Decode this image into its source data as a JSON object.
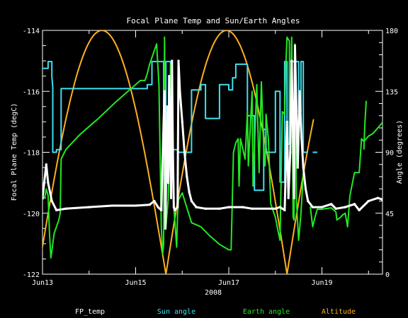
{
  "chart_data": {
    "type": "line",
    "title": "Focal Plane Temp and Sun/Earth Angles",
    "xlabel": "2008",
    "ylabel_left": "Focal Plane Temp (degC)",
    "ylabel_right": "Angle (degrees)",
    "x_unit": "days (Jun 13 = 13)",
    "xlim": [
      13.0,
      20.3
    ],
    "ylim_left": [
      -122,
      -114
    ],
    "ylim_right": [
      0,
      180
    ],
    "left_ticks": [
      -122,
      -120,
      -118,
      -116,
      -114
    ],
    "right_ticks": [
      0,
      45,
      90,
      135,
      180
    ],
    "x_ticks": [
      {
        "x": 13,
        "label": "Jun13"
      },
      {
        "x": 15,
        "label": "Jun15"
      },
      {
        "x": 17,
        "label": "Jun17"
      },
      {
        "x": 19,
        "label": "Jun19"
      }
    ],
    "legend": [
      {
        "name": "FP_temp",
        "color": "#ffffff"
      },
      {
        "name": "Sun angle",
        "color": "#40e0f0"
      },
      {
        "name": "Earth angle",
        "color": "#22e822"
      },
      {
        "name": "Altitude",
        "color": "#ffb020"
      }
    ],
    "series": [
      {
        "name": "FP_temp",
        "axis": "left",
        "color": "#ffffff",
        "style": "points",
        "points": [
          [
            13.0,
            -119.5
          ],
          [
            13.08,
            -118.4
          ],
          [
            13.12,
            -119.0
          ],
          [
            13.2,
            -119.6
          ],
          [
            13.3,
            -119.9
          ],
          [
            13.5,
            -119.85
          ],
          [
            14.0,
            -119.8
          ],
          [
            14.5,
            -119.75
          ],
          [
            15.0,
            -119.75
          ],
          [
            15.3,
            -119.72
          ],
          [
            15.4,
            -119.6
          ],
          [
            15.48,
            -119.8
          ],
          [
            15.55,
            -119.9
          ],
          [
            15.6,
            -117.0
          ],
          [
            15.62,
            -116.0
          ],
          [
            15.64,
            -120.5
          ],
          [
            15.66,
            -118.0
          ],
          [
            15.68,
            -116.5
          ],
          [
            15.7,
            -119.0
          ],
          [
            15.72,
            -115.5
          ],
          [
            15.74,
            -117.5
          ],
          [
            15.76,
            -119.5
          ],
          [
            15.78,
            -115.0
          ],
          [
            15.8,
            -118.0
          ],
          [
            15.82,
            -119.8
          ],
          [
            15.84,
            -119.9
          ],
          [
            15.9,
            -119.8
          ],
          [
            15.92,
            -115.0
          ],
          [
            15.95,
            -116.0
          ],
          [
            16.0,
            -117.0
          ],
          [
            16.05,
            -118.0
          ],
          [
            16.1,
            -118.8
          ],
          [
            16.15,
            -119.3
          ],
          [
            16.2,
            -119.6
          ],
          [
            16.3,
            -119.8
          ],
          [
            16.5,
            -119.85
          ],
          [
            16.8,
            -119.85
          ],
          [
            17.0,
            -119.8
          ],
          [
            17.3,
            -119.8
          ],
          [
            17.5,
            -119.85
          ],
          [
            18.0,
            -119.85
          ],
          [
            18.1,
            -119.8
          ],
          [
            18.2,
            -119.9
          ],
          [
            18.25,
            -117.0
          ],
          [
            18.28,
            -119.5
          ],
          [
            18.32,
            -118.0
          ],
          [
            18.35,
            -115.0
          ],
          [
            18.38,
            -117.5
          ],
          [
            18.4,
            -119.5
          ],
          [
            18.42,
            -114.5
          ],
          [
            18.45,
            -116.5
          ],
          [
            18.48,
            -118.5
          ],
          [
            18.52,
            -116.0
          ],
          [
            18.56,
            -117.5
          ],
          [
            18.6,
            -118.5
          ],
          [
            18.65,
            -119.2
          ],
          [
            18.7,
            -119.6
          ],
          [
            18.8,
            -119.8
          ],
          [
            19.0,
            -119.8
          ],
          [
            19.2,
            -119.7
          ],
          [
            19.3,
            -119.85
          ],
          [
            19.5,
            -119.8
          ],
          [
            19.7,
            -119.7
          ],
          [
            19.8,
            -119.9
          ],
          [
            20.0,
            -119.6
          ],
          [
            20.2,
            -119.5
          ],
          [
            20.3,
            -119.55
          ]
        ]
      },
      {
        "name": "Sun angle",
        "axis": "right",
        "color": "#40e0f0",
        "style": "line",
        "segments": [
          [
            [
              13.0,
              152
            ],
            [
              13.12,
              152
            ],
            [
              13.12,
              157
            ],
            [
              13.2,
              157
            ],
            [
              13.2,
              146
            ],
            [
              13.22,
              138
            ],
            [
              13.22,
              90
            ],
            [
              13.3,
              90
            ],
            [
              13.3,
              92
            ],
            [
              13.4,
              92
            ],
            [
              13.4,
              137
            ],
            [
              14.0,
              137
            ],
            [
              14.5,
              137
            ],
            [
              15.0,
              137
            ],
            [
              15.25,
              137
            ],
            [
              15.25,
              140
            ],
            [
              15.35,
              140
            ],
            [
              15.35,
              157
            ],
            [
              15.6,
              157
            ],
            [
              15.6,
              92
            ],
            [
              15.65,
              92
            ],
            [
              15.65,
              157
            ],
            [
              15.75,
              157
            ],
            [
              15.75,
              92
            ],
            [
              15.9,
              92
            ],
            [
              15.9,
              90
            ],
            [
              16.2,
              90
            ],
            [
              16.2,
              136
            ],
            [
              16.4,
              136
            ],
            [
              16.4,
              140
            ],
            [
              16.5,
              140
            ],
            [
              16.5,
              115
            ],
            [
              16.8,
              115
            ],
            [
              16.8,
              140
            ],
            [
              17.0,
              140
            ],
            [
              17.0,
              136
            ],
            [
              17.08,
              136
            ],
            [
              17.08,
              145
            ],
            [
              17.15,
              145
            ],
            [
              17.15,
              155
            ],
            [
              17.4,
              155
            ],
            [
              17.4,
              117
            ],
            [
              17.55,
              117
            ],
            [
              17.55,
              62
            ],
            [
              17.75,
              62
            ],
            [
              17.75,
              107
            ],
            [
              17.8,
              107
            ],
            [
              17.8,
              90
            ],
            [
              18.0,
              90
            ],
            [
              18.0,
              135
            ],
            [
              18.1,
              135
            ],
            [
              18.1,
              68
            ],
            [
              18.2,
              68
            ],
            [
              18.2,
              157
            ],
            [
              18.25,
              157
            ],
            [
              18.25,
              96
            ],
            [
              18.3,
              96
            ],
            [
              18.3,
              157
            ],
            [
              18.5,
              157
            ],
            [
              18.5,
              120
            ],
            [
              18.55,
              120
            ],
            [
              18.55,
              157
            ],
            [
              18.6,
              157
            ],
            [
              18.6,
              90
            ],
            [
              18.7,
              90
            ]
          ],
          [
            [
              18.8,
              90
            ],
            [
              18.9,
              90
            ]
          ]
        ]
      },
      {
        "name": "Earth angle",
        "axis": "right",
        "color": "#22e822",
        "style": "line",
        "segments": [
          [
            [
              13.0,
              55
            ],
            [
              13.05,
              57
            ],
            [
              13.08,
              63
            ],
            [
              13.12,
              58
            ],
            [
              13.15,
              30
            ],
            [
              13.18,
              12
            ],
            [
              13.2,
              17
            ],
            [
              13.25,
              30
            ],
            [
              13.3,
              35
            ],
            [
              13.35,
              40
            ],
            [
              13.38,
              45
            ],
            [
              13.4,
              85
            ],
            [
              13.5,
              92
            ],
            [
              13.8,
              103
            ],
            [
              14.2,
              115
            ],
            [
              14.6,
              128
            ],
            [
              15.0,
              140
            ],
            [
              15.1,
              143
            ],
            [
              15.2,
              143
            ],
            [
              15.25,
              148
            ],
            [
              15.3,
              155
            ],
            [
              15.4,
              165
            ],
            [
              15.45,
              170
            ],
            [
              15.5,
              140
            ],
            [
              15.55,
              35
            ],
            [
              15.58,
              15
            ],
            [
              15.6,
              22
            ],
            [
              15.62,
              175
            ],
            [
              15.65,
              35
            ],
            [
              15.7,
              55
            ],
            [
              15.75,
              155
            ],
            [
              15.8,
              90
            ],
            [
              15.82,
              50
            ],
            [
              15.85,
              35
            ],
            [
              15.88,
              20
            ],
            [
              15.9,
              45
            ],
            [
              15.92,
              55
            ],
            [
              16.0,
              60
            ],
            [
              16.2,
              38
            ],
            [
              16.4,
              35
            ],
            [
              16.6,
              28
            ],
            [
              16.8,
              22
            ],
            [
              17.0,
              18
            ],
            [
              17.05,
              18
            ],
            [
              17.1,
              90
            ],
            [
              17.15,
              97
            ],
            [
              17.2,
              100
            ],
            [
              17.22,
              65
            ],
            [
              17.25,
              100
            ],
            [
              17.35,
              85
            ],
            [
              17.4,
              120
            ],
            [
              17.42,
              80
            ],
            [
              17.5,
              135
            ],
            [
              17.52,
              65
            ],
            [
              17.6,
              140
            ],
            [
              17.65,
              75
            ],
            [
              17.7,
              142
            ],
            [
              17.75,
              92
            ],
            [
              17.78,
              80
            ],
            [
              17.8,
              118
            ],
            [
              17.85,
              100
            ],
            [
              17.9,
              52
            ],
            [
              18.0,
              42
            ],
            [
              18.05,
              33
            ],
            [
              18.1,
              25
            ],
            [
              18.15,
              120
            ],
            [
              18.2,
              118
            ],
            [
              18.22,
              150
            ],
            [
              18.25,
              175
            ],
            [
              18.3,
              172
            ],
            [
              18.32,
              90
            ],
            [
              18.35,
              175
            ],
            [
              18.38,
              42
            ],
            [
              18.4,
              40
            ],
            [
              18.42,
              170
            ],
            [
              18.45,
              55
            ],
            [
              18.5,
              25
            ],
            [
              18.55,
              45
            ],
            [
              18.6,
              75
            ]
          ],
          [
            [
              18.75,
              50
            ],
            [
              18.8,
              35
            ],
            [
              18.85,
              42
            ],
            [
              18.9,
              48
            ],
            [
              19.0,
              48
            ],
            [
              19.2,
              49
            ],
            [
              19.3,
              46
            ],
            [
              19.32,
              40
            ],
            [
              19.4,
              42
            ],
            [
              19.45,
              44
            ],
            [
              19.5,
              45
            ],
            [
              19.55,
              35
            ],
            [
              19.6,
              58
            ],
            [
              19.7,
              75
            ],
            [
              19.8,
              75
            ],
            [
              19.85,
              100
            ],
            [
              19.9,
              98
            ],
            [
              20.0,
              102
            ],
            [
              20.1,
              104
            ],
            [
              20.2,
              108
            ],
            [
              20.3,
              112
            ]
          ],
          [
            [
              19.9,
              92
            ],
            [
              19.92,
              110
            ],
            [
              19.95,
              128
            ]
          ]
        ]
      },
      {
        "name": "Altitude",
        "axis": "right",
        "color": "#ffb020",
        "style": "line",
        "arches": [
          {
            "x_start": 12.9,
            "x_end": 15.65
          },
          {
            "x_start": 15.65,
            "x_end": 18.25
          },
          {
            "x_start": 18.25,
            "x_end": 18.82,
            "partial": true
          }
        ]
      }
    ]
  }
}
